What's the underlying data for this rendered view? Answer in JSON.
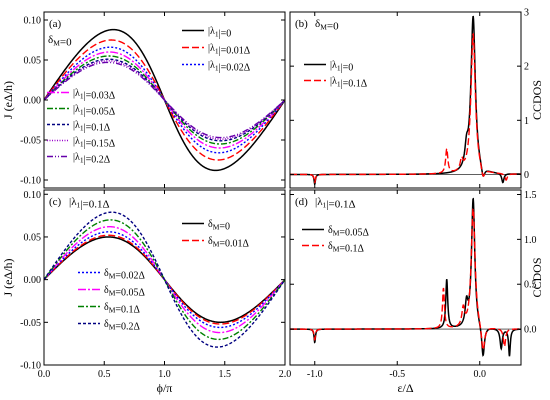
{
  "chart_data": [
    {
      "type": "line",
      "panel_label": "(a)",
      "annotation": "δM=0",
      "ylabel": "J (eΔ/h)",
      "xlabel": "",
      "xlim": [
        0,
        2
      ],
      "ylim": [
        -0.11,
        0.11
      ],
      "xticks": [
        0,
        0.5,
        1,
        1.5,
        2
      ],
      "xtick_labels": [
        "",
        "",
        "",
        "",
        ""
      ],
      "yticks": [
        -0.1,
        -0.05,
        0.0,
        0.05,
        0.1
      ],
      "ytick_labels": [
        "-0.10",
        "-0.05",
        "0.00",
        "0.05",
        "0.10"
      ],
      "model": "current-phase",
      "series": [
        {
          "name": "|λ1|=0",
          "amplitude": 0.088,
          "shape": 0.62,
          "color": "#000000",
          "dash": ""
        },
        {
          "name": "|λ1|=0.01Δ",
          "amplitude": 0.075,
          "shape": 0.52,
          "color": "#ff0000",
          "dash": "7,3"
        },
        {
          "name": "|λ1|=0.02Δ",
          "amplitude": 0.066,
          "shape": 0.46,
          "color": "#0000ff",
          "dash": "2,2"
        },
        {
          "name": "|λ1|=0.03Δ",
          "amplitude": 0.06,
          "shape": 0.42,
          "color": "#ff00ff",
          "dash": "8,2,2,2"
        },
        {
          "name": "|λ1|=0.05Δ",
          "amplitude": 0.055,
          "shape": 0.38,
          "color": "#008000",
          "dash": "6,2,2,2"
        },
        {
          "name": "|λ1|=0.1Δ",
          "amplitude": 0.051,
          "shape": 0.35,
          "color": "#000080",
          "dash": "3,2"
        },
        {
          "name": "|λ1|=0.15Δ",
          "amplitude": 0.049,
          "shape": 0.33,
          "color": "#9900cc",
          "dash": "1,1.5"
        },
        {
          "name": "|λ1|=0.2Δ",
          "amplitude": 0.047,
          "shape": 0.31,
          "color": "#6600aa",
          "dash": "6,2,1,2,1,2"
        }
      ]
    },
    {
      "type": "line",
      "panel_label": "(b)",
      "annotation": "δM=0",
      "ylabel": "CCDOS",
      "xlabel": "",
      "xlim": [
        -1.15,
        0.25
      ],
      "ylim": [
        -0.25,
        3
      ],
      "xticks": [
        -1.0,
        -0.5,
        0.0
      ],
      "xtick_labels": [
        "",
        "",
        ""
      ],
      "yticks": [
        0,
        1,
        2,
        3
      ],
      "ytick_labels": [
        "0",
        "1",
        "2",
        "3"
      ],
      "y_axis_side": "right",
      "model": "ccdos",
      "series": [
        {
          "name": "|λ1|=0",
          "color": "#000000",
          "dash": "",
          "peaks": [
            {
              "x": -0.04,
              "h": 2.9,
              "w": 0.016
            },
            {
              "x": -0.08,
              "h": 0.35,
              "w": 0.012
            }
          ],
          "dips": [
            {
              "x": -1.0,
              "h": -0.18,
              "w": 0.005
            },
            {
              "x": 0.02,
              "h": -0.22,
              "w": 0.012
            },
            {
              "x": 0.14,
              "h": -0.17,
              "w": 0.008
            }
          ]
        },
        {
          "name": "|λ1|=0.1Δ",
          "color": "#ff0000",
          "dash": "7,3",
          "peaks": [
            {
              "x": -0.04,
              "h": 2.6,
              "w": 0.016
            },
            {
              "x": -0.2,
              "h": 0.45,
              "w": 0.008
            },
            {
              "x": -0.11,
              "h": 0.2,
              "w": 0.01
            }
          ],
          "dips": [
            {
              "x": -1.0,
              "h": -0.15,
              "w": 0.005
            },
            {
              "x": 0.02,
              "h": -0.2,
              "w": 0.012
            },
            {
              "x": 0.16,
              "h": -0.12,
              "w": 0.008
            }
          ]
        }
      ]
    },
    {
      "type": "line",
      "panel_label": "(c)",
      "annotation": "|λ1|=0.1Δ",
      "ylabel": "J (eΔ/h)",
      "xlabel": "ϕ/π",
      "xlim": [
        0,
        2
      ],
      "ylim": [
        -0.1,
        0.105
      ],
      "xticks": [
        0,
        0.5,
        1,
        1.5,
        2
      ],
      "xtick_labels": [
        "0.0",
        "0.5",
        "1.0",
        "1.5",
        "2.0"
      ],
      "yticks": [
        -0.1,
        -0.05,
        0.0,
        0.05,
        0.1
      ],
      "ytick_labels": [
        "-0.10",
        "-0.05",
        "0.00",
        "0.05",
        "0.10"
      ],
      "model": "current-phase",
      "series": [
        {
          "name": "δM=0",
          "amplitude": 0.05,
          "shape": 0.35,
          "color": "#000000",
          "dash": ""
        },
        {
          "name": "δM=0.01Δ",
          "amplitude": 0.052,
          "shape": 0.36,
          "color": "#ff0000",
          "dash": "7,3"
        },
        {
          "name": "δM=0.02Δ",
          "amplitude": 0.056,
          "shape": 0.38,
          "color": "#0000ff",
          "dash": "2,2"
        },
        {
          "name": "δM=0.05Δ",
          "amplitude": 0.062,
          "shape": 0.42,
          "color": "#ff00ff",
          "dash": "8,2,2,2"
        },
        {
          "name": "δM=0.1Δ",
          "amplitude": 0.07,
          "shape": 0.48,
          "color": "#008000",
          "dash": "6,2,2,2"
        },
        {
          "name": "δM=0.2Δ",
          "amplitude": 0.079,
          "shape": 0.55,
          "color": "#000080",
          "dash": "3,2"
        }
      ]
    },
    {
      "type": "line",
      "panel_label": "(d)",
      "annotation": "|λ1|=0.1Δ",
      "ylabel": "CCDOS",
      "xlabel": "ε/Δ",
      "xlim": [
        -1.15,
        0.25
      ],
      "ylim": [
        -0.4,
        1.55
      ],
      "xticks": [
        -1.0,
        -0.5,
        0.0
      ],
      "xtick_labels": [
        "-1.0",
        "-0.5",
        "0.0"
      ],
      "yticks": [
        0.0,
        0.5,
        1.0,
        1.5
      ],
      "ytick_labels": [
        "0.0",
        "0.5",
        "1.0",
        "1.5"
      ],
      "y_axis_side": "right",
      "model": "ccdos",
      "series": [
        {
          "name": "δM=0.05Δ",
          "color": "#000000",
          "dash": "",
          "peaks": [
            {
              "x": -0.04,
              "h": 1.45,
              "w": 0.012
            },
            {
              "x": -0.2,
              "h": 0.55,
              "w": 0.007
            },
            {
              "x": -0.08,
              "h": 0.25,
              "w": 0.01
            }
          ],
          "dips": [
            {
              "x": -1.0,
              "h": -0.15,
              "w": 0.005
            },
            {
              "x": 0.02,
              "h": -0.35,
              "w": 0.01
            },
            {
              "x": 0.13,
              "h": -0.22,
              "w": 0.008
            },
            {
              "x": 0.18,
              "h": -0.3,
              "w": 0.006
            }
          ]
        },
        {
          "name": "δM=0.1Δ",
          "color": "#ff0000",
          "dash": "7,3",
          "peaks": [
            {
              "x": -0.04,
              "h": 1.35,
              "w": 0.014
            },
            {
              "x": -0.22,
              "h": 0.45,
              "w": 0.007
            },
            {
              "x": -0.1,
              "h": 0.2,
              "w": 0.01
            }
          ],
          "dips": [
            {
              "x": -1.0,
              "h": -0.12,
              "w": 0.005
            },
            {
              "x": 0.02,
              "h": -0.3,
              "w": 0.012
            },
            {
              "x": 0.15,
              "h": -0.2,
              "w": 0.008
            }
          ]
        }
      ]
    }
  ]
}
